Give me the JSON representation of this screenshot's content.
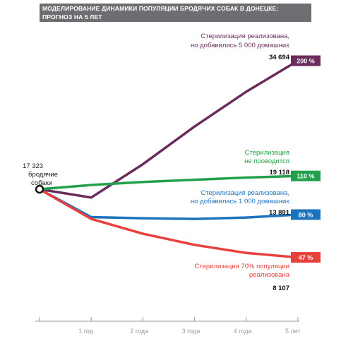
{
  "title": {
    "line1": "МОДЕЛИРОВАНИЕ ДИНАМИКИ ПОПУЛЯЦИИ БРОДЯЧИХ СОБАК В ДОНЕЦКЕ:",
    "line2": "ПРОГНОЗ НА 5 ЛЕТ"
  },
  "chart_data": {
    "type": "line",
    "x": [
      0,
      1,
      2,
      3,
      4,
      5
    ],
    "x_tick_labels": [
      "",
      "1 год",
      "2 года",
      "3 года",
      "4 года",
      "5 лет"
    ],
    "start_label": [
      "17 323",
      "бродячие",
      "собаки"
    ],
    "grid": false,
    "series": [
      {
        "name": "Стерилизация реализована, но добавились 5 000 домашних",
        "label_lines": [
          "Стерилизация реализована,",
          "но добавились 5 000 домашних"
        ],
        "color": "#6b2c5c",
        "values": [
          17323,
          16200,
          20700,
          25800,
          30500,
          34694
        ],
        "end_value": "34 694",
        "badge": "200 %"
      },
      {
        "name": "Стерилизация не проводится",
        "label_lines": [
          "Стерилизация",
          "не проводится"
        ],
        "color": "#22a04b",
        "values": [
          17323,
          17900,
          18300,
          18600,
          18900,
          19118
        ],
        "end_value": "19 118",
        "badge": "110 %"
      },
      {
        "name": "Стерилизация реализована, но добавилась 1 000 домашних",
        "label_lines": [
          "Стерилизация реализована,",
          "но добавилась 1 000 домашних"
        ],
        "color": "#1e73be",
        "values": [
          17323,
          13550,
          13400,
          13300,
          13500,
          13891
        ],
        "end_value": "13 891",
        "badge": "80 %"
      },
      {
        "name": "Стерилизация 70% популяции реализована",
        "label_lines": [
          "Стерилизация 70% популяции",
          "реализована"
        ],
        "color": "#e8413c",
        "values": [
          17323,
          13300,
          11300,
          9800,
          8700,
          8107
        ],
        "end_value": "8 107",
        "badge": "47 %"
      }
    ]
  }
}
